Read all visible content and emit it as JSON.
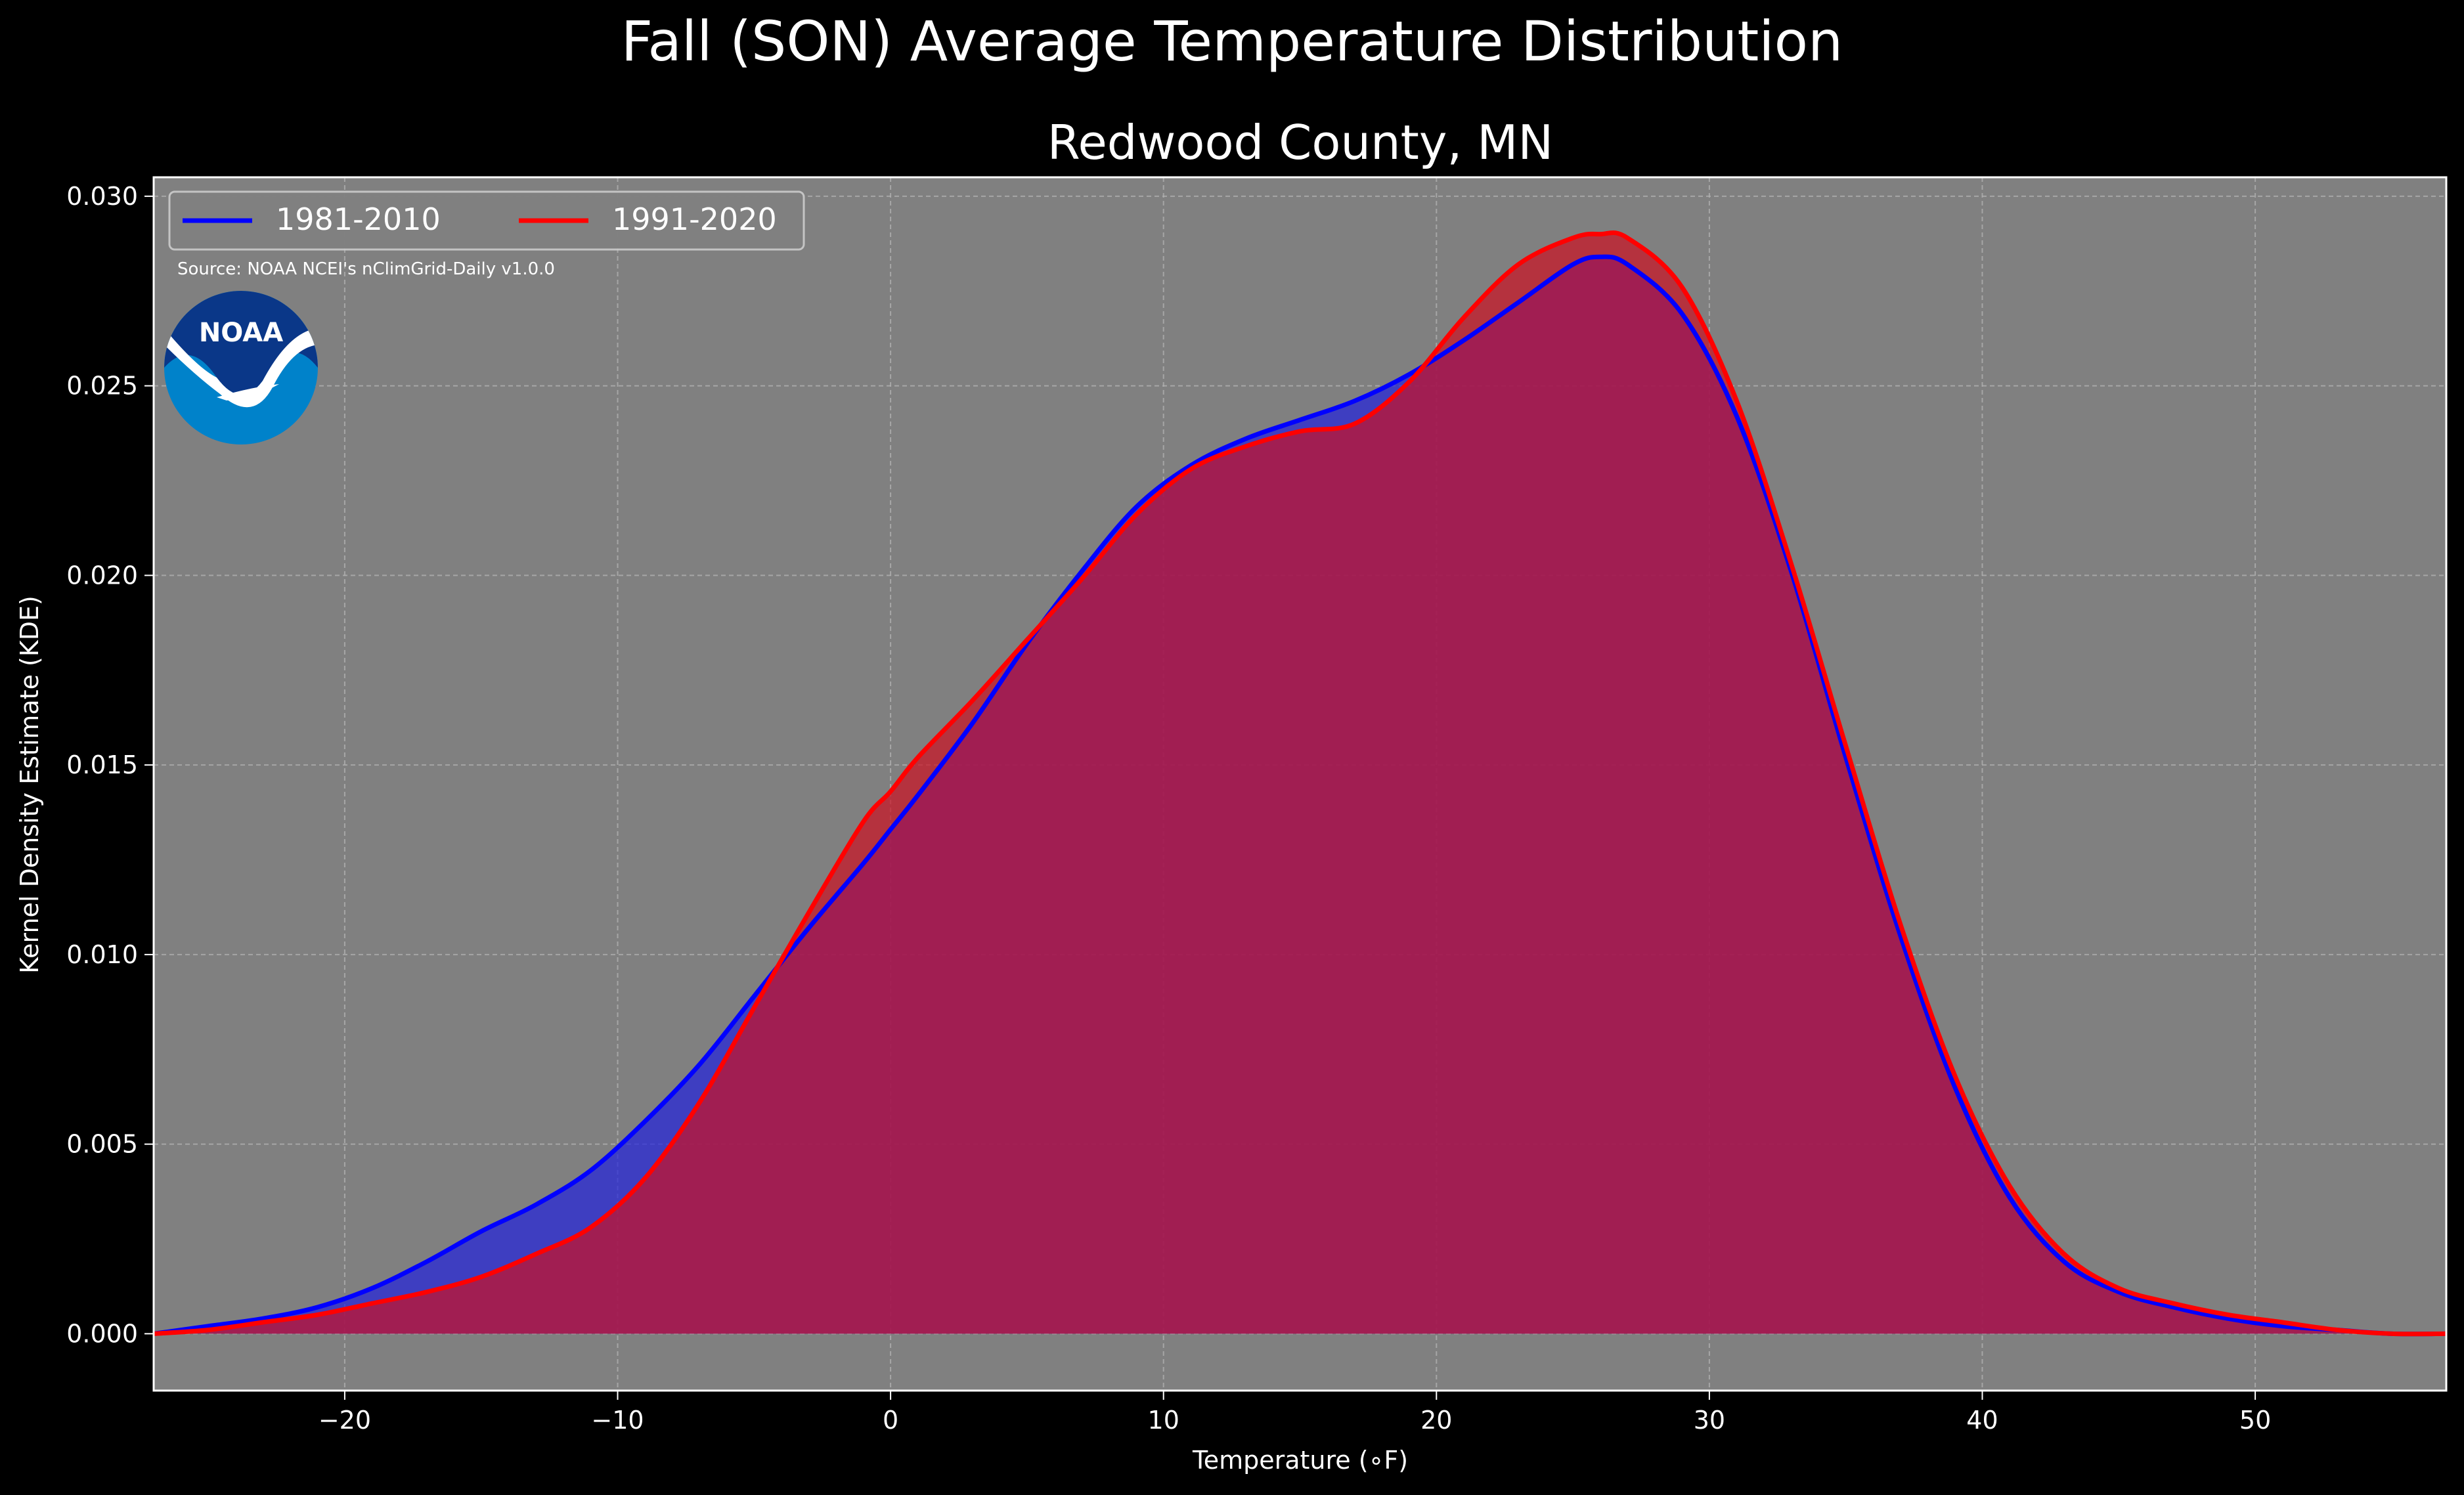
{
  "chart_data": {
    "type": "area",
    "title": "Fall (SON) Average Temperature Distribution",
    "subtitle": "Redwood County, MN",
    "xlabel": "Temperature (∘F)",
    "ylabel": "Kernel Density Estimate (KDE)",
    "xlim": [
      -27,
      57
    ],
    "ylim": [
      -0.0015,
      0.0305
    ],
    "x_ticks": [
      -20,
      -10,
      0,
      10,
      20,
      30,
      40,
      50
    ],
    "x_tick_labels": [
      "−20",
      "−10",
      "0",
      "10",
      "20",
      "30",
      "40",
      "50"
    ],
    "y_ticks": [
      0,
      0.005,
      0.01,
      0.015,
      0.02,
      0.025,
      0.03
    ],
    "y_tick_labels": [
      "0.000",
      "0.005",
      "0.010",
      "0.015",
      "0.020",
      "0.025",
      "0.030"
    ],
    "grid": true,
    "legend_position": "top-left",
    "annotation": "Source: NOAA NCEI's nClimGrid-Daily v1.0.0",
    "logo_text": "NOAA",
    "x": [
      -27,
      -25,
      -23,
      -21,
      -19,
      -17,
      -15,
      -13,
      -11,
      -9,
      -7,
      -5,
      -3,
      -1,
      0,
      1,
      3,
      5,
      7,
      9,
      11,
      13,
      15,
      17,
      19,
      21,
      23,
      25,
      26,
      27,
      29,
      31,
      33,
      35,
      37,
      39,
      41,
      43,
      45,
      47,
      49,
      51,
      53,
      55,
      57
    ],
    "series": [
      {
        "name": "1981-2010",
        "color": "#0000ff",
        "fill": "#2222dd",
        "values": [
          0.0,
          0.0002,
          0.0004,
          0.0007,
          0.0012,
          0.0019,
          0.0027,
          0.0034,
          0.0043,
          0.0056,
          0.0071,
          0.0089,
          0.0107,
          0.0124,
          0.0133,
          0.0142,
          0.0161,
          0.0182,
          0.0201,
          0.0218,
          0.0229,
          0.0236,
          0.0241,
          0.0246,
          0.0253,
          0.0262,
          0.0272,
          0.0282,
          0.0284,
          0.0282,
          0.0269,
          0.0242,
          0.0201,
          0.0152,
          0.0105,
          0.0065,
          0.0036,
          0.0019,
          0.0011,
          0.0007,
          0.0004,
          0.0002,
          0.0001,
          0.0,
          0.0
        ]
      },
      {
        "name": "1991-2020",
        "color": "#ff0000",
        "fill": "#cc1122",
        "values": [
          0.0,
          0.0001,
          0.0003,
          0.0005,
          0.0008,
          0.0011,
          0.0015,
          0.0021,
          0.0028,
          0.0041,
          0.0061,
          0.0086,
          0.0111,
          0.0135,
          0.0143,
          0.0152,
          0.0167,
          0.0183,
          0.0199,
          0.0216,
          0.0228,
          0.0234,
          0.0238,
          0.024,
          0.0251,
          0.0268,
          0.0282,
          0.0289,
          0.029,
          0.0289,
          0.0276,
          0.0246,
          0.0203,
          0.0155,
          0.0108,
          0.0068,
          0.0039,
          0.0021,
          0.0012,
          0.0008,
          0.0005,
          0.0003,
          0.0001,
          0.0,
          0.0
        ]
      }
    ]
  }
}
